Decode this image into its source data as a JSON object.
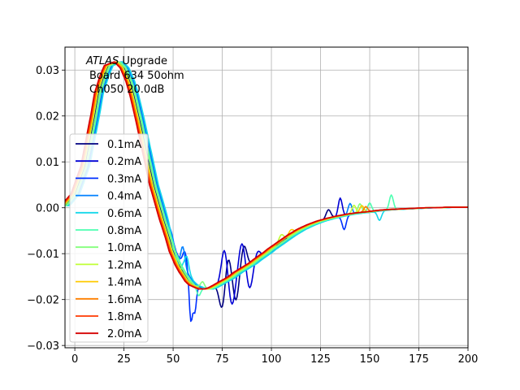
{
  "chart_data": {
    "type": "line",
    "title": "",
    "xlabel": "",
    "ylabel": "",
    "xlim": [
      -5,
      200
    ],
    "ylim": [
      -0.0305,
      0.035
    ],
    "grid": true,
    "legend_placement": "center-left",
    "xticks": [
      0,
      25,
      50,
      75,
      100,
      125,
      150,
      175,
      200
    ],
    "xtick_labels": [
      "0",
      "25",
      "50",
      "75",
      "100",
      "125",
      "150",
      "175",
      "200"
    ],
    "yticks": [
      -0.03,
      -0.02,
      -0.01,
      0.0,
      0.01,
      0.02,
      0.03
    ],
    "ytick_labels": [
      "−0.03",
      "−0.02",
      "−0.01",
      "0.00",
      "0.01",
      "0.02",
      "0.03"
    ],
    "annotation": {
      "line1_italic": "ATLAS",
      "line1_rest": " Upgrade",
      "line2": "Board 634 50ohm",
      "line3": "Ch050 20.0dB"
    },
    "base_curve": {
      "x": [
        -5,
        0,
        5,
        10,
        12,
        15,
        17,
        20,
        22,
        25,
        28,
        30,
        33,
        35,
        38,
        40,
        43,
        45,
        48,
        50,
        53,
        55,
        58,
        60,
        63,
        65,
        68,
        70,
        73,
        75,
        78,
        80,
        83,
        85,
        88,
        90,
        93,
        95,
        98,
        100,
        105,
        110,
        115,
        120,
        125,
        130,
        135,
        140,
        145,
        150,
        155,
        160,
        165,
        170,
        175,
        180,
        185,
        190,
        195,
        200
      ],
      "y": [
        0.0005,
        0.003,
        0.009,
        0.02,
        0.025,
        0.029,
        0.031,
        0.0315,
        0.0318,
        0.0305,
        0.0275,
        0.0245,
        0.019,
        0.015,
        0.009,
        0.005,
        0.0005,
        -0.0025,
        -0.0065,
        -0.0095,
        -0.0125,
        -0.014,
        -0.016,
        -0.0168,
        -0.0174,
        -0.0177,
        -0.0177,
        -0.0174,
        -0.0167,
        -0.0162,
        -0.0155,
        -0.015,
        -0.014,
        -0.0135,
        -0.0127,
        -0.0122,
        -0.0112,
        -0.0106,
        -0.0097,
        -0.009,
        -0.0075,
        -0.006,
        -0.0047,
        -0.0037,
        -0.0029,
        -0.0023,
        -0.0018,
        -0.0014,
        -0.0011,
        -0.0009,
        -0.0006,
        -0.0004,
        -0.0003,
        -0.0002,
        -0.0001,
        0.0,
        0.0,
        0.0001,
        0.0001,
        0.0001
      ]
    },
    "series": [
      {
        "name": "0.1mA",
        "color": "#000080",
        "dx": 0.0,
        "noise": [
          [
            75,
            1.5,
            -0.006
          ],
          [
            78,
            1.5,
            0.005
          ],
          [
            82,
            1.5,
            -0.006
          ],
          [
            86,
            1.5,
            0.005
          ],
          [
            129,
            1.2,
            0.002
          ]
        ]
      },
      {
        "name": "0.2mA",
        "color": "#0000d5",
        "dx": 0.8,
        "noise": [
          [
            76,
            1.5,
            0.007
          ],
          [
            80,
            1.5,
            -0.006
          ],
          [
            85,
            1.5,
            0.006
          ],
          [
            89,
            1.5,
            -0.005
          ],
          [
            93,
            1.5,
            0.002
          ],
          [
            135,
            1.0,
            0.004
          ]
        ]
      },
      {
        "name": "0.3mA",
        "color": "#0030ff",
        "dx": 1.5,
        "noise": [
          [
            56,
            1.2,
            0.004
          ],
          [
            59,
            0.8,
            -0.009
          ],
          [
            61,
            0.8,
            -0.006
          ],
          [
            137,
            1.0,
            -0.003
          ]
        ]
      },
      {
        "name": "0.4mA",
        "color": "#0080ff",
        "dx": 2.0,
        "noise": [
          [
            52,
            1.0,
            -0.003
          ],
          [
            55,
            1.0,
            0.004
          ],
          [
            140,
            1.0,
            0.0025
          ]
        ]
      },
      {
        "name": "0.6mA",
        "color": "#15d8ea",
        "dx": 2.5,
        "noise": [
          [
            50,
            1.0,
            -0.003
          ],
          [
            53,
            1.0,
            -0.004
          ],
          [
            57,
            1.0,
            0.003
          ],
          [
            155,
            1.0,
            -0.002
          ]
        ]
      },
      {
        "name": "0.8mA",
        "color": "#4dffb0",
        "dx": 1.2,
        "noise": [
          [
            63,
            1.0,
            -0.002
          ],
          [
            150,
            1.0,
            0.002
          ],
          [
            161,
            1.0,
            0.0032
          ]
        ]
      },
      {
        "name": "1.0mA",
        "color": "#84ff7c",
        "dx": 0.6,
        "noise": [
          [
            65,
            1.0,
            0.0015
          ],
          [
            145,
            1.0,
            0.002
          ]
        ]
      },
      {
        "name": "1.2mA",
        "color": "#c0ff36",
        "dx": -0.4,
        "noise": [
          [
            105,
            1.2,
            0.0015
          ],
          [
            142,
            1.0,
            0.0018
          ]
        ]
      },
      {
        "name": "1.4mA",
        "color": "#ffca00",
        "dx": -0.8,
        "noise": [
          [
            110,
            1.2,
            0.001
          ],
          [
            146,
            1.0,
            0.0015
          ]
        ]
      },
      {
        "name": "1.6mA",
        "color": "#ff8000",
        "dx": -1.2,
        "noise": [
          [
            148,
            1.0,
            0.0012
          ]
        ]
      },
      {
        "name": "1.8mA",
        "color": "#ff3a00",
        "dx": -1.6,
        "noise": []
      },
      {
        "name": "2.0mA",
        "color": "#d50000",
        "dx": -2.0,
        "noise": []
      }
    ]
  }
}
